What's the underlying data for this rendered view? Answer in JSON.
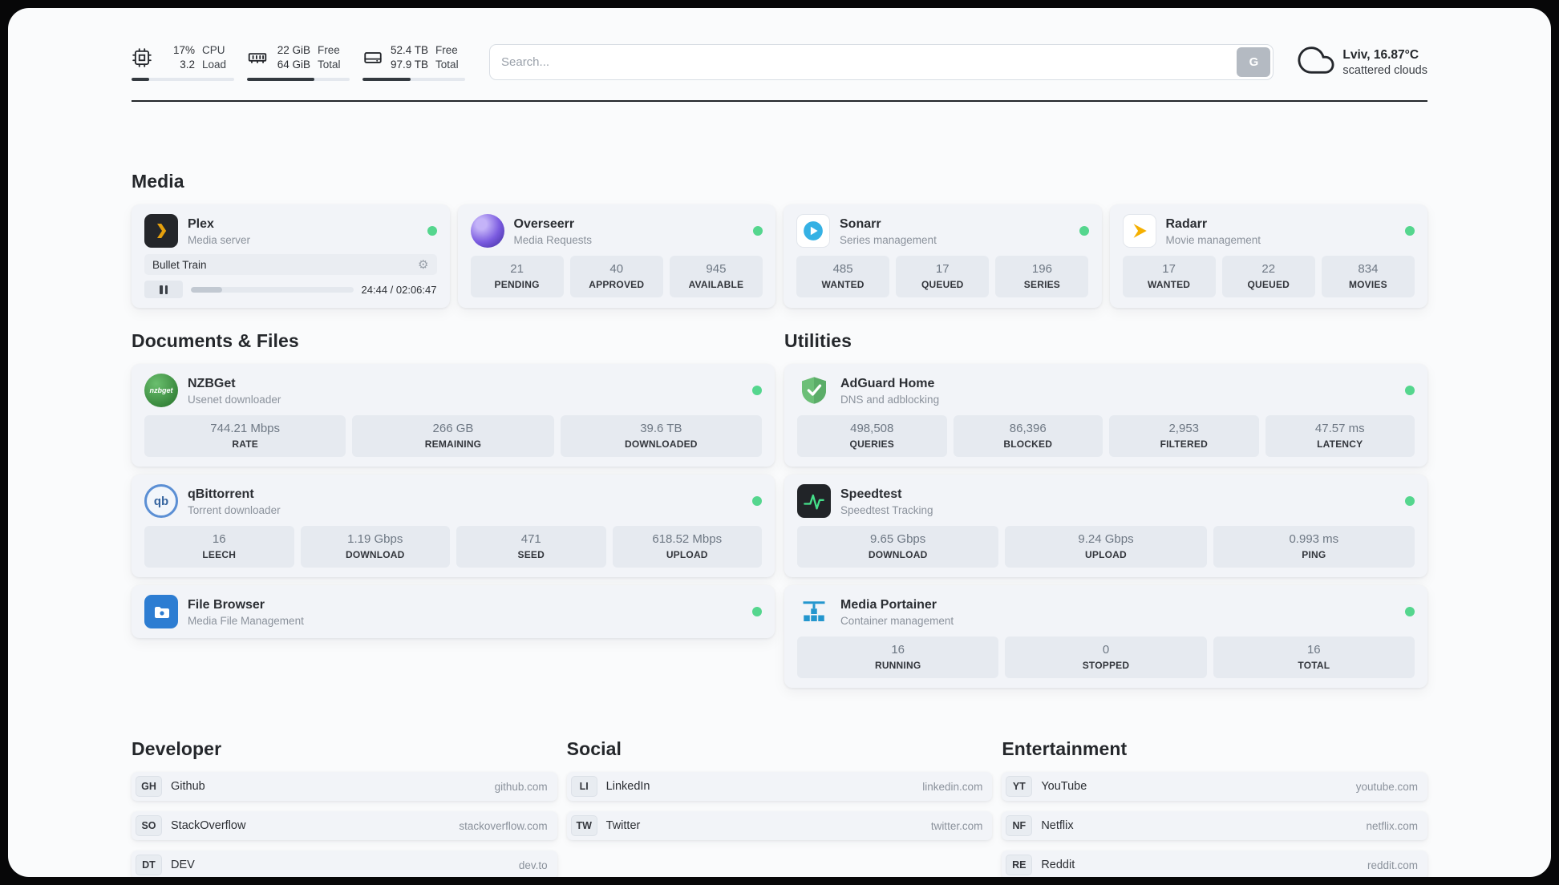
{
  "colors": {
    "status_green": "#55d68e",
    "progress_dark": "#343a40"
  },
  "header": {
    "cpu": {
      "percent": "17%",
      "load": "3.2",
      "label_top": "CPU",
      "label_bottom": "Load",
      "progress": 17
    },
    "ram": {
      "free": "22 GiB",
      "total": "64 GiB",
      "label_top": "Free",
      "label_bottom": "Total",
      "progress": 66
    },
    "disk": {
      "free": "52.4 TB",
      "total": "97.9 TB",
      "label_top": "Free",
      "label_bottom": "Total",
      "progress": 47
    },
    "search": {
      "placeholder": "Search...",
      "button_label": "G"
    },
    "weather": {
      "location": "Lviv, 16.87°C",
      "condition": "scattered clouds"
    }
  },
  "media": {
    "title": "Media",
    "plex": {
      "name": "Plex",
      "subtitle": "Media server",
      "now_playing": "Bullet Train",
      "elapsed_total": "24:44 / 02:06:47",
      "progress": 19.5
    },
    "overseerr": {
      "name": "Overseerr",
      "subtitle": "Media Requests",
      "stats": [
        {
          "value": "21",
          "label": "PENDING"
        },
        {
          "value": "40",
          "label": "APPROVED"
        },
        {
          "value": "945",
          "label": "AVAILABLE"
        }
      ]
    },
    "sonarr": {
      "name": "Sonarr",
      "subtitle": "Series management",
      "stats": [
        {
          "value": "485",
          "label": "WANTED"
        },
        {
          "value": "17",
          "label": "QUEUED"
        },
        {
          "value": "196",
          "label": "SERIES"
        }
      ]
    },
    "radarr": {
      "name": "Radarr",
      "subtitle": "Movie management",
      "stats": [
        {
          "value": "17",
          "label": "WANTED"
        },
        {
          "value": "22",
          "label": "QUEUED"
        },
        {
          "value": "834",
          "label": "MOVIES"
        }
      ]
    }
  },
  "documents": {
    "title": "Documents & Files",
    "nzbget": {
      "name": "NZBGet",
      "subtitle": "Usenet downloader",
      "icon_label": "nzbget",
      "stats": [
        {
          "value": "744.21 Mbps",
          "label": "RATE"
        },
        {
          "value": "266 GB",
          "label": "REMAINING"
        },
        {
          "value": "39.6 TB",
          "label": "DOWNLOADED"
        }
      ]
    },
    "qbittorrent": {
      "name": "qBittorrent",
      "subtitle": "Torrent downloader",
      "icon_label": "qb",
      "stats": [
        {
          "value": "16",
          "label": "LEECH"
        },
        {
          "value": "1.19 Gbps",
          "label": "DOWNLOAD"
        },
        {
          "value": "471",
          "label": "SEED"
        },
        {
          "value": "618.52 Mbps",
          "label": "UPLOAD"
        }
      ]
    },
    "filebrowser": {
      "name": "File Browser",
      "subtitle": "Media File Management"
    }
  },
  "utilities": {
    "title": "Utilities",
    "adguard": {
      "name": "AdGuard Home",
      "subtitle": "DNS and adblocking",
      "stats": [
        {
          "value": "498,508",
          "label": "QUERIES"
        },
        {
          "value": "86,396",
          "label": "BLOCKED"
        },
        {
          "value": "2,953",
          "label": "FILTERED"
        },
        {
          "value": "47.57 ms",
          "label": "LATENCY"
        }
      ]
    },
    "speedtest": {
      "name": "Speedtest",
      "subtitle": "Speedtest Tracking",
      "stats": [
        {
          "value": "9.65 Gbps",
          "label": "DOWNLOAD"
        },
        {
          "value": "9.24 Gbps",
          "label": "UPLOAD"
        },
        {
          "value": "0.993 ms",
          "label": "PING"
        }
      ]
    },
    "portainer": {
      "name": "Media Portainer",
      "subtitle": "Container management",
      "stats": [
        {
          "value": "16",
          "label": "RUNNING"
        },
        {
          "value": "0",
          "label": "STOPPED"
        },
        {
          "value": "16",
          "label": "TOTAL"
        }
      ]
    }
  },
  "bookmarks": {
    "developer": {
      "title": "Developer",
      "items": [
        {
          "abbr": "GH",
          "name": "Github",
          "url": "github.com"
        },
        {
          "abbr": "SO",
          "name": "StackOverflow",
          "url": "stackoverflow.com"
        },
        {
          "abbr": "DT",
          "name": "DEV",
          "url": "dev.to"
        }
      ]
    },
    "social": {
      "title": "Social",
      "items": [
        {
          "abbr": "LI",
          "name": "LinkedIn",
          "url": "linkedin.com"
        },
        {
          "abbr": "TW",
          "name": "Twitter",
          "url": "twitter.com"
        }
      ]
    },
    "entertainment": {
      "title": "Entertainment",
      "items": [
        {
          "abbr": "YT",
          "name": "YouTube",
          "url": "youtube.com"
        },
        {
          "abbr": "NF",
          "name": "Netflix",
          "url": "netflix.com"
        },
        {
          "abbr": "RE",
          "name": "Reddit",
          "url": "reddit.com"
        }
      ]
    }
  }
}
